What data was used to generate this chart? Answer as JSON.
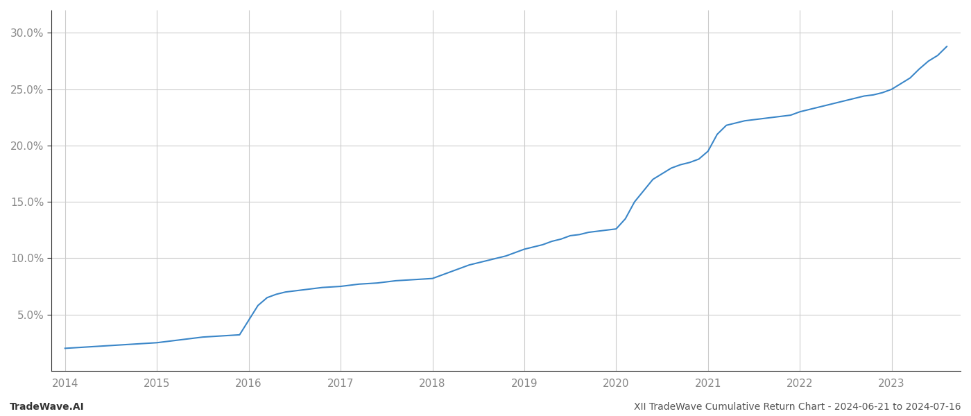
{
  "title": "",
  "footer_left": "TradeWave.AI",
  "footer_right": "XII TradeWave Cumulative Return Chart - 2024-06-21 to 2024-07-16",
  "x_years": [
    2014,
    2015,
    2016,
    2017,
    2018,
    2019,
    2020,
    2021,
    2022,
    2023
  ],
  "x_data": [
    2014.0,
    2014.1,
    2014.2,
    2014.3,
    2014.4,
    2014.5,
    2014.6,
    2014.7,
    2014.8,
    2014.9,
    2015.0,
    2015.1,
    2015.2,
    2015.3,
    2015.4,
    2015.5,
    2015.6,
    2015.7,
    2015.8,
    2015.9,
    2016.0,
    2016.1,
    2016.2,
    2016.3,
    2016.4,
    2016.5,
    2016.6,
    2016.7,
    2016.8,
    2016.9,
    2017.0,
    2017.1,
    2017.2,
    2017.3,
    2017.4,
    2017.5,
    2017.6,
    2017.7,
    2017.8,
    2017.9,
    2018.0,
    2018.1,
    2018.2,
    2018.3,
    2018.4,
    2018.5,
    2018.6,
    2018.7,
    2018.8,
    2018.9,
    2019.0,
    2019.1,
    2019.2,
    2019.3,
    2019.4,
    2019.5,
    2019.6,
    2019.7,
    2019.8,
    2019.9,
    2020.0,
    2020.1,
    2020.2,
    2020.3,
    2020.4,
    2020.5,
    2020.6,
    2020.7,
    2020.8,
    2020.9,
    2021.0,
    2021.1,
    2021.2,
    2021.3,
    2021.4,
    2021.5,
    2021.6,
    2021.7,
    2021.8,
    2021.9,
    2022.0,
    2022.1,
    2022.2,
    2022.3,
    2022.4,
    2022.5,
    2022.6,
    2022.7,
    2022.8,
    2022.9,
    2023.0,
    2023.1,
    2023.2,
    2023.3,
    2023.4,
    2023.5,
    2023.6
  ],
  "y_data": [
    2.0,
    2.05,
    2.1,
    2.15,
    2.2,
    2.25,
    2.3,
    2.35,
    2.4,
    2.45,
    2.5,
    2.6,
    2.7,
    2.8,
    2.9,
    3.0,
    3.05,
    3.1,
    3.15,
    3.2,
    4.5,
    5.8,
    6.5,
    6.8,
    7.0,
    7.1,
    7.2,
    7.3,
    7.4,
    7.45,
    7.5,
    7.6,
    7.7,
    7.75,
    7.8,
    7.9,
    8.0,
    8.05,
    8.1,
    8.15,
    8.2,
    8.5,
    8.8,
    9.1,
    9.4,
    9.6,
    9.8,
    10.0,
    10.2,
    10.5,
    10.8,
    11.0,
    11.2,
    11.5,
    11.7,
    12.0,
    12.1,
    12.3,
    12.4,
    12.5,
    12.6,
    13.5,
    15.0,
    16.0,
    17.0,
    17.5,
    18.0,
    18.3,
    18.5,
    18.8,
    19.5,
    21.0,
    21.8,
    22.0,
    22.2,
    22.3,
    22.4,
    22.5,
    22.6,
    22.7,
    23.0,
    23.2,
    23.4,
    23.6,
    23.8,
    24.0,
    24.2,
    24.4,
    24.5,
    24.7,
    25.0,
    25.5,
    26.0,
    26.8,
    27.5,
    28.0,
    28.8
  ],
  "line_color": "#3a86c8",
  "line_width": 1.5,
  "ylim": [
    0,
    32
  ],
  "yticks": [
    5.0,
    10.0,
    15.0,
    20.0,
    25.0,
    30.0
  ],
  "ytick_labels": [
    "5.0%",
    "10.0%",
    "15.0%",
    "20.0%",
    "25.0%",
    "30.0%"
  ],
  "grid_color": "#cccccc",
  "background_color": "#ffffff",
  "footer_fontsize": 10,
  "tick_label_color": "#888888",
  "footer_color": "#555555",
  "spine_color": "#333333"
}
